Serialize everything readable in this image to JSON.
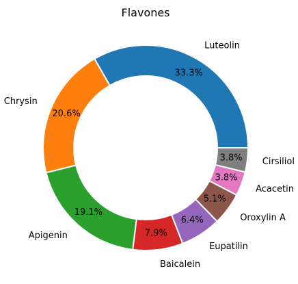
{
  "chart_data": {
    "type": "pie",
    "variant": "donut",
    "title": "Flavones",
    "slices": [
      {
        "label": "Luteolin",
        "value": 33.3,
        "pct_label": "33.3%",
        "color": "#1f77b4"
      },
      {
        "label": "Chrysin",
        "value": 20.6,
        "pct_label": "20.6%",
        "color": "#ff7f0e"
      },
      {
        "label": "Apigenin",
        "value": 19.1,
        "pct_label": "19.1%",
        "color": "#2ca02c"
      },
      {
        "label": "Baicalein",
        "value": 7.9,
        "pct_label": "7.9%",
        "color": "#d62728"
      },
      {
        "label": "Eupatilin",
        "value": 6.4,
        "pct_label": "6.4%",
        "color": "#9467bd"
      },
      {
        "label": "Oroxylin A",
        "value": 5.1,
        "pct_label": "5.1%",
        "color": "#8c564b"
      },
      {
        "label": "Acacetin",
        "value": 3.8,
        "pct_label": "3.8%",
        "color": "#e377c2"
      },
      {
        "label": "Cirsiliol",
        "value": 3.8,
        "pct_label": "3.8%",
        "color": "#7f7f7f"
      }
    ],
    "start_angle_deg": 0,
    "direction": "counterclockwise",
    "wedge_edge_color": "#ffffff",
    "legend": "none",
    "grid": false
  }
}
